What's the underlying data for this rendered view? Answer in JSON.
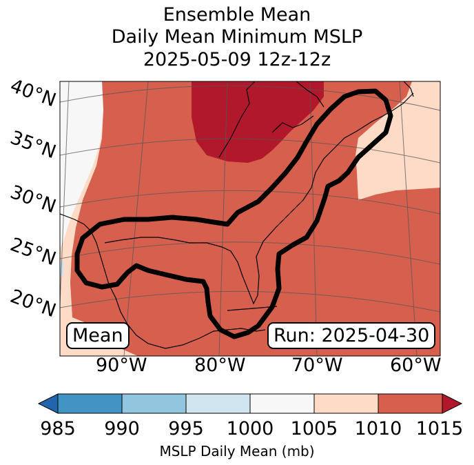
{
  "title": {
    "line1": "Ensemble Mean",
    "line2": "Daily Mean Minimum MSLP",
    "line3": "2025-05-09 12z-12z"
  },
  "map": {
    "lat_labels": [
      "40°N",
      "35°N",
      "30°N",
      "25°N",
      "20°N"
    ],
    "lon_labels": [
      "90°W",
      "80°W",
      "70°W",
      "60°W"
    ],
    "region": "Eastern United States, Gulf of Mexico and western Atlantic",
    "contour_color": "#000000"
  },
  "badges": {
    "left": "Mean",
    "right": "Run: 2025-04-30"
  },
  "colorbar": {
    "label": "MSLP Daily Mean (mb)",
    "ticks": [
      "985",
      "990",
      "995",
      "1000",
      "1005",
      "1010",
      "1015"
    ],
    "colors": [
      "#2166ac",
      "#4393c3",
      "#92c5de",
      "#d1e5f0",
      "#f7f7f7",
      "#fddbc7",
      "#d6604d",
      "#b2182b"
    ]
  }
}
